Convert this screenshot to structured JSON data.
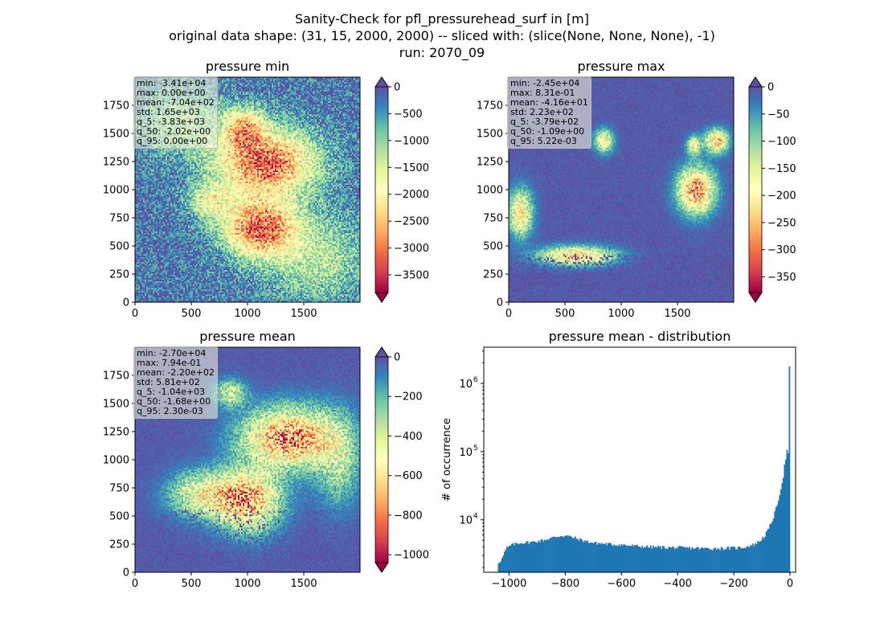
{
  "figure": {
    "title_lines": [
      "Sanity-Check for pfl_pressurehead_surf in [m]",
      "original data shape: (31, 15, 2000, 2000) -- sliced with: (slice(None, None, None), -1)",
      "run: 2070_09"
    ]
  },
  "colors": {
    "spectral": [
      "#9e0142",
      "#d53e4f",
      "#f46d43",
      "#fdae61",
      "#fee08b",
      "#ffffbf",
      "#e6f598",
      "#abdda4",
      "#66c2a5",
      "#3288bd",
      "#5e4fa2"
    ],
    "hist_bar": "#1f77b4",
    "stats_box_bg": "#f5f5dc"
  },
  "chart_data": [
    {
      "type": "heatmap",
      "title": "pressure min",
      "colormap": "Spectral",
      "xlim": [
        0,
        2000
      ],
      "ylim": [
        0,
        2000
      ],
      "x_ticks": [
        "0",
        "500",
        "1000",
        "1500"
      ],
      "y_ticks": [
        "0",
        "250",
        "500",
        "750",
        "1000",
        "1250",
        "1500",
        "1750"
      ],
      "color_range": [
        -3830,
        0
      ],
      "colorbar_ticks": [
        "0",
        "−500",
        "−1000",
        "−1500",
        "−2000",
        "−2500",
        "−3000",
        "−3500"
      ],
      "colorbar_extend": "both",
      "stats": [
        "min: -3.41e+04",
        "max: 0.00e+00",
        "mean: -7.04e+02",
        "std: 1.65e+03",
        "q_5: -3.83e+03",
        "q_50: -2.02e+00",
        "q_95: 0.00e+00"
      ]
    },
    {
      "type": "heatmap",
      "title": "pressure max",
      "colormap": "Spectral",
      "xlim": [
        0,
        2000
      ],
      "ylim": [
        0,
        2000
      ],
      "x_ticks": [
        "0",
        "500",
        "1000",
        "1500"
      ],
      "y_ticks": [
        "0",
        "250",
        "500",
        "750",
        "1000",
        "1250",
        "1500",
        "1750"
      ],
      "color_range": [
        -379,
        0
      ],
      "colorbar_ticks": [
        "0",
        "−50",
        "−100",
        "−150",
        "−200",
        "−250",
        "−300",
        "−350"
      ],
      "colorbar_extend": "both",
      "stats": [
        "min: -2.45e+04",
        "max: 8.31e-01",
        "mean: -4.16e+01",
        "std: 2.23e+02",
        "q_5: -3.79e+02",
        "q_50: -1.09e+00",
        "q_95: 5.22e-03"
      ]
    },
    {
      "type": "heatmap",
      "title": "pressure mean",
      "colormap": "Spectral",
      "xlim": [
        0,
        2000
      ],
      "ylim": [
        0,
        2000
      ],
      "x_ticks": [
        "0",
        "500",
        "1000",
        "1500"
      ],
      "y_ticks": [
        "0",
        "250",
        "500",
        "750",
        "1000",
        "1250",
        "1500",
        "1750"
      ],
      "color_range": [
        -1040,
        0
      ],
      "colorbar_ticks": [
        "0",
        "−200",
        "−400",
        "−600",
        "−800",
        "−1000"
      ],
      "colorbar_extend": "both",
      "stats": [
        "min: -2.70e+04",
        "max: 7.94e-01",
        "mean: -2.20e+02",
        "std: 5.81e+02",
        "q_5: -1.04e+03",
        "q_50: -1.68e+00",
        "q_95: 2.30e-03"
      ]
    },
    {
      "type": "bar",
      "title": "pressure mean - distribution",
      "xlabel": "",
      "ylabel": "# of occurrence",
      "xlim": [
        -1090,
        20
      ],
      "ylim": [
        1700,
        3400000
      ],
      "yscale": "log",
      "x_ticks": [
        "−1000",
        "−800",
        "−600",
        "−400",
        "−200",
        "0"
      ],
      "y_ticks": [
        "10^4",
        "10^5",
        "10^6"
      ],
      "bin_range": [
        -1040,
        0
      ],
      "bin_count": 240,
      "profile_points": [
        [
          -1040,
          2300
        ],
        [
          -1025,
          2700
        ],
        [
          -1010,
          3800
        ],
        [
          -990,
          4300
        ],
        [
          -960,
          4600
        ],
        [
          -920,
          4700
        ],
        [
          -880,
          5000
        ],
        [
          -850,
          5400
        ],
        [
          -820,
          5800
        ],
        [
          -800,
          5900
        ],
        [
          -780,
          5600
        ],
        [
          -740,
          5000
        ],
        [
          -700,
          4600
        ],
        [
          -650,
          4400
        ],
        [
          -600,
          4300
        ],
        [
          -550,
          4100
        ],
        [
          -500,
          4000
        ],
        [
          -450,
          3950
        ],
        [
          -400,
          3900
        ],
        [
          -350,
          3850
        ],
        [
          -300,
          3800
        ],
        [
          -250,
          3800
        ],
        [
          -200,
          3850
        ],
        [
          -160,
          4000
        ],
        [
          -130,
          4300
        ],
        [
          -110,
          4800
        ],
        [
          -90,
          5800
        ],
        [
          -75,
          7500
        ],
        [
          -60,
          10500
        ],
        [
          -45,
          17000
        ],
        [
          -35,
          26000
        ],
        [
          -25,
          40000
        ],
        [
          -20,
          60000
        ],
        [
          -15,
          80000
        ],
        [
          -10,
          110000
        ],
        [
          -7,
          100000
        ],
        [
          -4,
          60000
        ],
        [
          -2,
          2300000
        ],
        [
          0,
          500000
        ]
      ]
    }
  ]
}
